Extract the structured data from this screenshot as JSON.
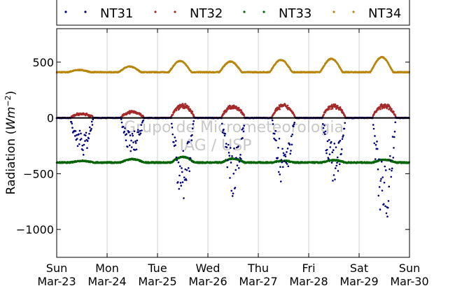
{
  "chart_data": {
    "type": "scatter",
    "title": "",
    "ylabel": "Radiation ($Wm^{-2}$)",
    "ylabel_text": "Radiation (",
    "ylabel_unit": "Wm",
    "ylabel_exp": "−2",
    "ylabel_close": ")",
    "xlabel": "",
    "ylim": [
      -1250,
      800
    ],
    "xlim": [
      0,
      7
    ],
    "yticks": [
      500,
      0,
      -500,
      -1000
    ],
    "ytick_labels": [
      "500",
      "0",
      "−500",
      "−1000"
    ],
    "xticks": [
      {
        "x": 0,
        "day": "Sun",
        "date": "Mar-23"
      },
      {
        "x": 1,
        "day": "Mon",
        "date": "Mar-24"
      },
      {
        "x": 2,
        "day": "Tue",
        "date": "Mar-25"
      },
      {
        "x": 3,
        "day": "Wed",
        "date": "Mar-26"
      },
      {
        "x": 4,
        "day": "Thu",
        "date": "Mar-27"
      },
      {
        "x": 5,
        "day": "Fri",
        "date": "Mar-28"
      },
      {
        "x": 6,
        "day": "Sat",
        "date": "Mar-29"
      },
      {
        "x": 7,
        "day": "Sun",
        "date": "Mar-30"
      }
    ],
    "grid": "vertical",
    "legend_position": "top",
    "watermark": [
      "Grupo de Micrometeorologia",
      "IAG / USP"
    ],
    "series": [
      {
        "name": "NT31",
        "color": "#000080",
        "daily_min": [
          -340,
          -350,
          -720,
          -720,
          -580,
          -560,
          -930
        ],
        "note_visual": "night ~0, daytime scattered negative values"
      },
      {
        "name": "NT32",
        "color": "#a52a2a",
        "daily_peak": [
          40,
          60,
          120,
          110,
          120,
          115,
          120
        ]
      },
      {
        "name": "NT33",
        "color": "#006400",
        "base": -400,
        "daily_peak": [
          -385,
          -370,
          -350,
          -365,
          -385,
          -380,
          -375
        ]
      },
      {
        "name": "NT34",
        "color": "#b8860b",
        "base": 410,
        "daily_peak": [
          430,
          460,
          510,
          505,
          520,
          530,
          545
        ]
      }
    ],
    "zero_line": 0
  }
}
